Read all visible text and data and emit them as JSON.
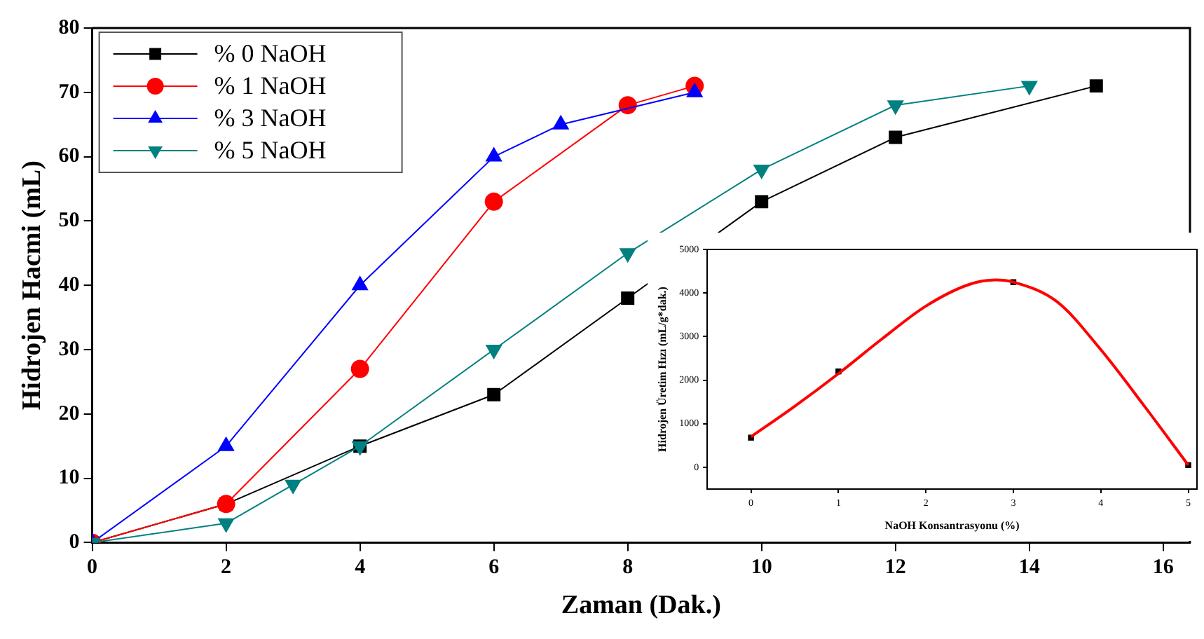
{
  "chart_data": [
    {
      "type": "line",
      "xlabel": "Zaman (Dak.)",
      "ylabel": "Hidrojen Hacmi (mL)",
      "xlim": [
        0,
        16.4
      ],
      "xticks": [
        0,
        2,
        4,
        6,
        8,
        10,
        12,
        14,
        16
      ],
      "ylim": [
        0,
        80
      ],
      "yticks": [
        0,
        10,
        20,
        30,
        40,
        50,
        60,
        70,
        80
      ],
      "grid": false,
      "legend": "top left",
      "series": [
        {
          "name": "% 0 NaOH",
          "color": "#000000",
          "marker": "square",
          "x": [
            0,
            2,
            4,
            6,
            8,
            10,
            12,
            15
          ],
          "values": [
            0,
            6,
            15,
            23,
            38,
            53,
            63,
            71
          ]
        },
        {
          "name": "% 1 NaOH",
          "color": "#ff0000",
          "marker": "circle",
          "x": [
            0,
            2,
            4,
            6,
            8,
            9
          ],
          "values": [
            0,
            6,
            27,
            53,
            68,
            71
          ]
        },
        {
          "name": "% 3 NaOH",
          "color": "#0000ff",
          "marker": "triangle",
          "x": [
            0,
            2,
            4,
            6,
            7,
            9
          ],
          "values": [
            0,
            15,
            40,
            60,
            65,
            70
          ]
        },
        {
          "name": "% 5 NaOH",
          "color": "#008080",
          "marker": "triangle-down",
          "x": [
            0,
            2,
            3,
            4,
            6,
            8,
            10,
            12,
            14
          ],
          "values": [
            0,
            3,
            9,
            15,
            30,
            45,
            58,
            68,
            71
          ]
        }
      ]
    },
    {
      "type": "scatter",
      "xlabel": "NaOH Konsantrasyonu (%)",
      "ylabel": "Hidrojen Üretim Hızı (mL/g*dak.)",
      "xlim": [
        -0.5,
        5.1
      ],
      "xticks": [
        0,
        1,
        2,
        3,
        4,
        5
      ],
      "ylim": [
        -500,
        5000
      ],
      "yticks": [
        0,
        1000,
        2000,
        3000,
        4000,
        5000
      ],
      "grid": false,
      "legend": false,
      "series": [
        {
          "color": "#000000",
          "marker": "square",
          "x": [
            0,
            1,
            3,
            5
          ],
          "values": [
            680,
            2200,
            4250,
            50
          ]
        },
        {
          "type": "line",
          "color": "#ff0000",
          "marker": "none",
          "x": [
            0,
            0.5,
            1,
            1.5,
            2,
            2.5,
            2.8,
            3,
            3.5,
            4,
            4.5,
            5
          ],
          "values": [
            700,
            1400,
            2150,
            2950,
            3700,
            4200,
            4300,
            4250,
            3800,
            2700,
            1400,
            50
          ]
        }
      ]
    }
  ]
}
